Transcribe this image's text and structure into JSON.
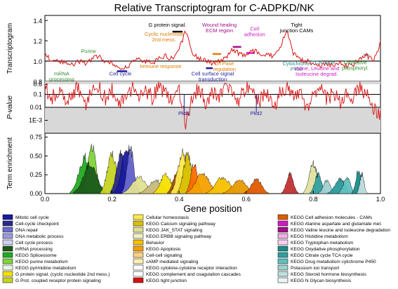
{
  "chart_data": {
    "type": "line",
    "title": "Relative Transcriptogram for C-ADPKD/NK",
    "xlabel": "Gene position",
    "xlim": [
      0.0,
      1.0
    ],
    "xticks": [
      "0.0",
      "0.2",
      "0.4",
      "0.6",
      "0.8",
      "1.0"
    ],
    "panels": [
      {
        "name": "transcriptogram",
        "ylabel": "Transcriptogram",
        "ylim": [
          0.8,
          1.45
        ],
        "yticks": [
          "0.8",
          "1.0",
          "1.2",
          "1.4"
        ],
        "series": {
          "x": [
            0.0,
            0.02,
            0.04,
            0.06,
            0.08,
            0.1,
            0.12,
            0.14,
            0.16,
            0.18,
            0.2,
            0.22,
            0.24,
            0.26,
            0.28,
            0.3,
            0.32,
            0.34,
            0.36,
            0.38,
            0.4,
            0.42,
            0.44,
            0.46,
            0.48,
            0.5,
            0.52,
            0.54,
            0.56,
            0.58,
            0.6,
            0.62,
            0.64,
            0.66,
            0.68,
            0.7,
            0.72,
            0.74,
            0.76,
            0.78,
            0.8,
            0.82,
            0.84,
            0.86,
            0.88,
            0.9,
            0.92,
            0.94,
            0.96,
            0.98,
            1.0
          ],
          "y": [
            1.08,
            0.99,
            1.01,
            0.98,
            0.96,
            1.0,
            0.98,
            1.02,
            1.05,
            1.0,
            0.98,
            0.93,
            0.94,
            0.98,
            1.02,
            1.0,
            0.97,
            1.02,
            1.05,
            1.02,
            1.12,
            1.3,
            1.06,
            1.03,
            1.0,
            0.98,
            1.0,
            1.04,
            1.12,
            1.07,
            1.05,
            1.1,
            1.08,
            1.06,
            1.05,
            1.12,
            1.3,
            1.08,
            1.02,
            1.0,
            0.97,
            0.95,
            0.97,
            0.96,
            0.98,
            0.95,
            0.97,
            1.02,
            1.05,
            1.0,
            1.18
          ]
        },
        "annotations": [
          {
            "text": "Purine",
            "color": "#2a8a2a"
          },
          {
            "text": "mRNA processing",
            "color": "#2a8a2a"
          },
          {
            "text": "Cell cycle",
            "color": "#1d1d9c"
          },
          {
            "text": "G protein signal.",
            "color": "#000000"
          },
          {
            "text": "Cyclic nucleotide 2nd mess.",
            "color": "#e07b00"
          },
          {
            "text": "Immune response",
            "color": "#e07b00"
          },
          {
            "text": "Cell surface signal transduction",
            "color": "#1d1d9c"
          },
          {
            "text": "GTPase regulation",
            "color": "#e07b00"
          },
          {
            "text": "Wound healing ECM region",
            "color": "#a0108a"
          },
          {
            "text": "Cell adhesion",
            "color": "#d01cc0"
          },
          {
            "text": "Tight junction CAMs",
            "color": "#000000"
          },
          {
            "text": "Cytochrome P450",
            "color": "#2a8a8a"
          },
          {
            "text": "TCA cycle",
            "color": "#2a8a8a"
          },
          {
            "text": "Valine, Leucine and Isoleucine degrad.",
            "color": "#d01cc0"
          },
          {
            "text": "Oxydative phosphoryl.",
            "color": "#2a8a2a"
          }
        ]
      },
      {
        "name": "p-value",
        "ylabel": "P-value",
        "scale": "log",
        "ylim": [
          0.0001,
          1.0
        ],
        "yticks": [
          "0.6",
          "0.1",
          "0.01",
          "1E-3"
        ],
        "series": {
          "x": [
            0.0,
            0.02,
            0.04,
            0.06,
            0.08,
            0.1,
            0.12,
            0.14,
            0.16,
            0.18,
            0.2,
            0.22,
            0.24,
            0.26,
            0.28,
            0.3,
            0.32,
            0.34,
            0.36,
            0.38,
            0.4,
            0.42,
            0.44,
            0.46,
            0.48,
            0.5,
            0.52,
            0.54,
            0.56,
            0.58,
            0.6,
            0.62,
            0.64,
            0.66,
            0.68,
            0.7,
            0.72,
            0.74,
            0.76,
            0.78,
            0.8,
            0.82,
            0.84,
            0.86,
            0.88,
            0.9,
            0.92,
            0.94,
            0.96,
            0.98,
            1.0
          ],
          "y": [
            0.3,
            0.05,
            0.2,
            0.02,
            0.1,
            0.3,
            0.01,
            0.15,
            0.4,
            0.05,
            0.2,
            0.008,
            0.1,
            0.3,
            0.03,
            0.2,
            0.06,
            0.4,
            0.1,
            0.03,
            0.25,
            0.0005,
            0.08,
            0.3,
            0.02,
            0.15,
            0.05,
            0.3,
            0.12,
            0.04,
            0.35,
            0.1,
            0.03,
            0.2,
            0.006,
            0.15,
            0.3,
            0.05,
            0.2,
            0.01,
            0.1,
            0.3,
            0.04,
            0.15,
            0.02,
            0.2,
            0.06,
            0.3,
            0.1,
            0.01,
            0.002
          ]
        },
        "annotations": [
          {
            "text": "Pkd1",
            "x": 0.415,
            "color": "#1d1d9c"
          },
          {
            "text": "Pkd2",
            "x": 0.63,
            "color": "#1d1d9c"
          }
        ]
      },
      {
        "name": "term-enrichment",
        "ylabel": "Term enrichment",
        "ylim": [
          0.0,
          0.8
        ],
        "yticks": [
          "0.00",
          "0.25",
          "0.50",
          "0.75"
        ],
        "peaks": [
          {
            "center": 0.12,
            "height": 0.55,
            "width": 0.018,
            "color": "#22aa22"
          },
          {
            "center": 0.14,
            "height": 0.72,
            "width": 0.012,
            "color": "#7fd43a"
          },
          {
            "center": 0.135,
            "height": 0.45,
            "width": 0.02,
            "color": "#1a5a1a"
          },
          {
            "center": 0.2,
            "height": 0.58,
            "width": 0.014,
            "color": "#c6d420"
          },
          {
            "center": 0.225,
            "height": 0.6,
            "width": 0.012,
            "color": "#2a2a8a"
          },
          {
            "center": 0.245,
            "height": 0.7,
            "width": 0.015,
            "color": "#1a1aa0"
          },
          {
            "center": 0.255,
            "height": 0.66,
            "width": 0.01,
            "color": "#6a6ad0"
          },
          {
            "center": 0.28,
            "height": 0.25,
            "width": 0.02,
            "color": "#e0e090"
          },
          {
            "center": 0.33,
            "height": 0.2,
            "width": 0.02,
            "color": "#c8b87a"
          },
          {
            "center": 0.36,
            "height": 0.3,
            "width": 0.015,
            "color": "#f5e000"
          },
          {
            "center": 0.395,
            "height": 0.35,
            "width": 0.012,
            "color": "#a04a0a"
          },
          {
            "center": 0.41,
            "height": 0.62,
            "width": 0.014,
            "color": "#ffe84a"
          },
          {
            "center": 0.425,
            "height": 0.58,
            "width": 0.012,
            "color": "#d8c000"
          },
          {
            "center": 0.445,
            "height": 0.45,
            "width": 0.01,
            "color": "#ff6a00"
          },
          {
            "center": 0.47,
            "height": 0.3,
            "width": 0.02,
            "color": "#f5a000"
          },
          {
            "center": 0.53,
            "height": 0.25,
            "width": 0.02,
            "color": "#f7c000"
          },
          {
            "center": 0.58,
            "height": 0.2,
            "width": 0.02,
            "color": "#e89a00"
          },
          {
            "center": 0.63,
            "height": 0.22,
            "width": 0.015,
            "color": "#e05a00"
          },
          {
            "center": 0.73,
            "height": 0.3,
            "width": 0.01,
            "color": "#c03030"
          },
          {
            "center": 0.8,
            "height": 0.45,
            "width": 0.012,
            "color": "#e0e0a0"
          },
          {
            "center": 0.815,
            "height": 0.3,
            "width": 0.01,
            "color": "#30a0a0"
          },
          {
            "center": 0.84,
            "height": 0.2,
            "width": 0.01,
            "color": "#a0d0d0"
          },
          {
            "center": 0.88,
            "height": 0.22,
            "width": 0.015,
            "color": "#2a9a9a"
          },
          {
            "center": 0.9,
            "height": 0.25,
            "width": 0.01,
            "color": "#60c0c0"
          },
          {
            "center": 0.935,
            "height": 0.35,
            "width": 0.008,
            "color": "#1a8a8a"
          },
          {
            "center": 0.945,
            "height": 0.3,
            "width": 0.006,
            "color": "#c0e0e0"
          }
        ]
      }
    ],
    "legend": {
      "columns": [
        [
          {
            "label": "Mitotic cell cycle",
            "color": "#1a1aa0"
          },
          {
            "label": "Cell-cycle checkpoint",
            "color": "#2a2a8a"
          },
          {
            "label": "DNA repair",
            "color": "#6a6ad0"
          },
          {
            "label": "DNA metabolic process",
            "color": "#9a9ae0"
          },
          {
            "label": "Cell cycle process",
            "color": "#d0d0f0"
          },
          {
            "label": "mRNA processing",
            "color": "#1a5a1a"
          },
          {
            "label": "KEGG Spliceosome",
            "color": "#22aa22"
          },
          {
            "label": "KEGG purine metabolism",
            "color": "#7fd43a"
          },
          {
            "label": "KEGG pyrimidine metabolism",
            "color": "#e8f5e0"
          },
          {
            "label": "G protein signal. (cyclic nucleotide 2nd mess.)",
            "color": "#f5e000"
          },
          {
            "label": "G Prot. coupled receptor protein signaling",
            "color": "#c6d420"
          }
        ],
        [
          {
            "label": "Cellular homeostasis",
            "color": "#ffe84a"
          },
          {
            "label": "KEGG Calcium signaling pathway",
            "color": "#d8c000"
          },
          {
            "label": "KEGG JAK_STAT signaling",
            "color": "#e0e090"
          },
          {
            "label": "KEGG ERBB signaling pathway",
            "color": "#f0f0c0"
          },
          {
            "label": "Behavior",
            "color": "#f7c000"
          },
          {
            "label": "KEGG Apoptosis",
            "color": "#f5a000"
          },
          {
            "label": "Cell-cell signaling",
            "color": "#ffd080"
          },
          {
            "label": "cAMP mediated signaling",
            "color": "#fff0b0"
          },
          {
            "label": "KEGG cytokine-cytokine receptor interaction",
            "color": "#ffffff"
          },
          {
            "label": "KEGG complement and coagulation cascades",
            "color": "#ffffff"
          },
          {
            "label": "KEGG tight junction",
            "color": "#d81010"
          }
        ],
        [
          {
            "label": "KEGG Cell adhesion molecules - CAMs",
            "color": "#e05a00"
          },
          {
            "label": "KEGG Alanine aspartate and glutamate met.",
            "color": "#d01cc0"
          },
          {
            "label": "KEGG Valine leucine and isoleucine degradation",
            "color": "#a0108a"
          },
          {
            "label": "KEGG Histidine metabolism",
            "color": "#f0b0e0"
          },
          {
            "label": "KEGG Tryptophan metabolism",
            "color": "#f7d0f0"
          },
          {
            "label": "KEGG Oxydative phosphorylation",
            "color": "#1a8a8a"
          },
          {
            "label": "KEGG Citrate cycle TCA cycle",
            "color": "#30a0a0"
          },
          {
            "label": "KEGG Drug metabolism cytichrome P450",
            "color": "#60c0c0"
          },
          {
            "label": "Potassium ion transport",
            "color": "#a0d0d0"
          },
          {
            "label": "KEGG Steroid hormone biosynthesis",
            "color": "#c0e0e0"
          },
          {
            "label": "KEGG N Glycan biosynthesis",
            "color": "#e8f5f5"
          }
        ]
      ]
    }
  }
}
